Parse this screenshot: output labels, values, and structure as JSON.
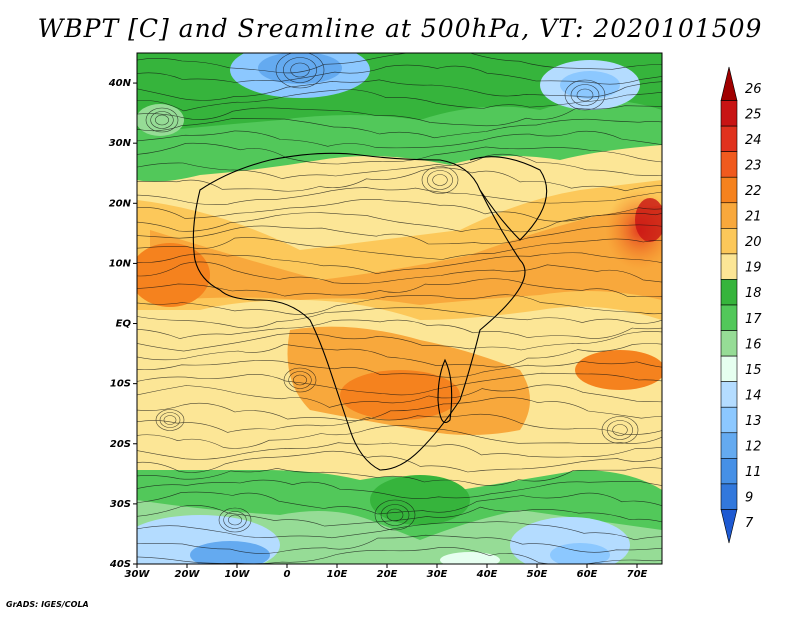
{
  "title": "WBPT [C] and Sreamline at 500hPa, VT: 2020101509",
  "credit": "GrADS: IGES/COLA",
  "map": {
    "lat_labels": [
      "40N",
      "30N",
      "20N",
      "10N",
      "EQ",
      "10S",
      "20S",
      "30S",
      "40S"
    ],
    "lon_labels": [
      "30W",
      "20W",
      "10W",
      "0",
      "10E",
      "20E",
      "30E",
      "40E",
      "50E",
      "60E",
      "70E"
    ],
    "lat_range": [
      -40,
      45
    ],
    "lon_range": [
      -30,
      75
    ]
  },
  "colorbar": {
    "levels": [
      "26",
      "25",
      "24",
      "23",
      "22",
      "21",
      "20",
      "19",
      "18",
      "17",
      "16",
      "15",
      "14",
      "13",
      "12",
      "11",
      "9",
      "7"
    ],
    "colors": [
      "#a00000",
      "#c81414",
      "#e0321e",
      "#f05a1e",
      "#f5821e",
      "#f8a83c",
      "#fcc85a",
      "#fce696",
      "#36b43c",
      "#52c85a",
      "#96dc96",
      "#e6fff0",
      "#b4dcff",
      "#8cc8ff",
      "#64aaf0",
      "#4690e6",
      "#3278dc",
      "#1e5ad2"
    ]
  }
}
